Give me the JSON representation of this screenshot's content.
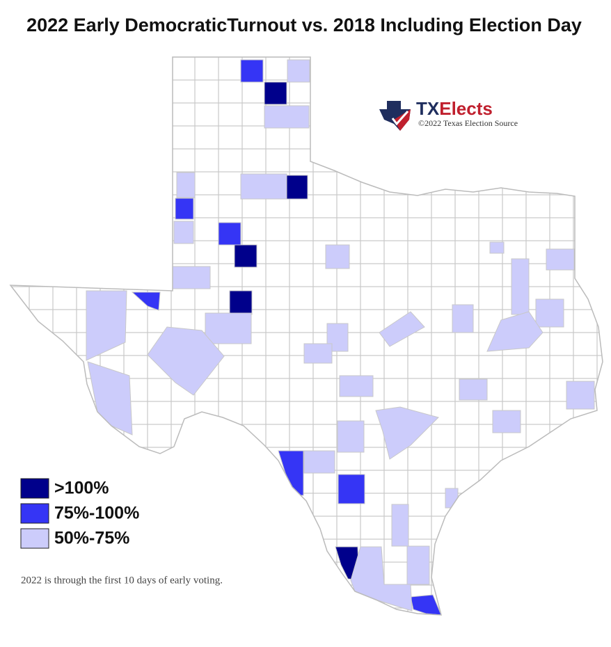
{
  "title": "2022 Early DemocraticTurnout vs. 2018 Including Election Day",
  "logo": {
    "part1": "TX",
    "part2": "Elects",
    "credit": "©2022 Texas Election Source"
  },
  "legend": [
    {
      "label": ">100%",
      "color": "#00008b"
    },
    {
      "label": "75%-100%",
      "color": "#3535f5"
    },
    {
      "label": "50%-75%",
      "color": "#ccccfb"
    }
  ],
  "note": "2022 is through the first 10 days of early voting."
}
